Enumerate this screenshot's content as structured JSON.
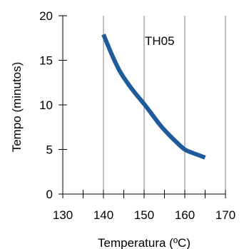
{
  "chart_data": {
    "type": "line",
    "xlabel": "Temperatura (ºC)",
    "ylabel": "Tempo (minutos)",
    "xlim": [
      130,
      170
    ],
    "ylim": [
      0,
      20
    ],
    "x_ticks": [
      "130",
      "140",
      "150",
      "160",
      "170"
    ],
    "y_ticks": [
      "0",
      "5",
      "10",
      "15",
      "20"
    ],
    "grid": "vertical",
    "annotation": "TH05",
    "series": [
      {
        "color": "#1f5b9a",
        "x": [
          140,
          142,
          144,
          146,
          148,
          150,
          152,
          154,
          156,
          158,
          160,
          162,
          165
        ],
        "y": [
          17.9,
          15.7,
          13.8,
          12.4,
          11.2,
          10.1,
          8.9,
          7.7,
          6.7,
          5.8,
          5.0,
          4.6,
          4.1
        ]
      }
    ]
  }
}
